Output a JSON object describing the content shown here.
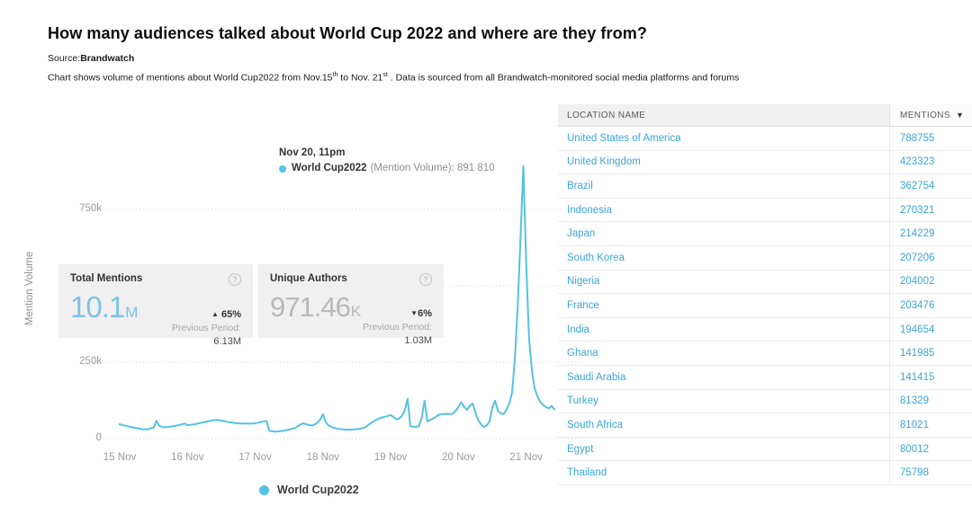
{
  "icons": {
    "help": "?",
    "sort_desc": "▼",
    "up_triangle": "▲",
    "down_triangle": "▼"
  },
  "header": {
    "title": "How many audiences talked about World Cup 2022 and where are they from?",
    "source_prefix": "Source:",
    "source_name": "Brandwatch",
    "subtitle_part1": "Chart shows volume of mentions about World Cup2022 from Nov.15",
    "subtitle_sup1": "th",
    "subtitle_part2": " to Nov. 21",
    "subtitle_sup2": "st",
    "subtitle_part3": " . Data is sourced from all Brandwatch-monitored social media platforms and forums"
  },
  "tooltip": {
    "date": "Nov 20, 11pm",
    "series": "World Cup2022",
    "metric": "(Mention Volume): 891 810"
  },
  "kpis": [
    {
      "title": "Total Mentions",
      "value": "10.1",
      "unit": "M",
      "change": "65%",
      "direction": "up",
      "prev_label": "Previous Period:",
      "prev_value": "6.13M"
    },
    {
      "title": "Unique Authors",
      "value": "971.46",
      "unit": "K",
      "change": "6%",
      "direction": "down",
      "prev_label": "Previous Period:",
      "prev_value": "1.03M"
    }
  ],
  "legend": {
    "label": "World Cup2022"
  },
  "chart_data": {
    "type": "line",
    "series_name": "World Cup2022",
    "ylabel": "Mention Volume",
    "line_color": "#55c1e2",
    "x_start": "Nov 15, 12am",
    "x_interval_hours": 1,
    "x_ticks": [
      "15 Nov",
      "16 Nov",
      "17 Nov",
      "18 Nov",
      "19 Nov",
      "20 Nov",
      "21 Nov"
    ],
    "y_ticks": [
      {
        "value": 750000,
        "label": "750k"
      },
      {
        "value": 500000,
        "label": ""
      },
      {
        "value": 250000,
        "label": "250k"
      },
      {
        "value": 0,
        "label": "0"
      }
    ],
    "ylim": [
      0,
      910000
    ],
    "grid": "dotted",
    "legend_position": "bottom",
    "peak": {
      "time": "Nov 20, 11pm",
      "value": 891810
    },
    "values": [
      47000,
      44500,
      42000,
      40000,
      38000,
      36000,
      34000,
      32500,
      31000,
      30000,
      31000,
      33500,
      36000,
      58000,
      42000,
      38000,
      37000,
      38000,
      39500,
      41000,
      42500,
      44000,
      46500,
      49000,
      44000,
      45000,
      46500,
      48000,
      50000,
      52000,
      54000,
      56000,
      58000,
      60000,
      61500,
      60500,
      59000,
      57000,
      55000,
      53500,
      52000,
      51000,
      50000,
      49500,
      49000,
      49500,
      49000,
      49500,
      50000,
      52000,
      54500,
      56500,
      58000,
      26000,
      24000,
      23000,
      23500,
      24500,
      26000,
      27500,
      29500,
      32000,
      34500,
      40000,
      46000,
      50000,
      47000,
      44000,
      43000,
      46000,
      52000,
      62000,
      80000,
      54000,
      43000,
      38500,
      35000,
      33000,
      31500,
      30000,
      29500,
      29000,
      29500,
      30000,
      31000,
      32000,
      34000,
      37500,
      44000,
      51000,
      57000,
      62000,
      66500,
      69500,
      71500,
      74000,
      77000,
      71000,
      63000,
      66000,
      74000,
      93000,
      130000,
      41000,
      39000,
      38500,
      41000,
      68000,
      124000,
      56000,
      61000,
      66000,
      71000,
      77500,
      80000,
      80500,
      81000,
      80000,
      82000,
      91000,
      103000,
      119000,
      104000,
      94000,
      107000,
      115000,
      86000,
      61000,
      46000,
      38000,
      43000,
      56000,
      101000,
      124000,
      91000,
      83000,
      80000,
      94000,
      114000,
      150000,
      260000,
      430000,
      660000,
      891810,
      580000,
      330000,
      225000,
      165000,
      138000,
      120000,
      110000,
      103000,
      99000,
      107000,
      96000
    ]
  },
  "table": {
    "headers": {
      "location": "LOCATION NAME",
      "mentions": "MENTIONS"
    },
    "rows": [
      {
        "location": "United States of America",
        "mentions": "788755"
      },
      {
        "location": "United Kingdom",
        "mentions": "423323"
      },
      {
        "location": "Brazil",
        "mentions": "362754"
      },
      {
        "location": "Indonesia",
        "mentions": "270321"
      },
      {
        "location": "Japan",
        "mentions": "214229"
      },
      {
        "location": "South Korea",
        "mentions": "207206"
      },
      {
        "location": "Nigeria",
        "mentions": "204002"
      },
      {
        "location": "France",
        "mentions": "203476"
      },
      {
        "location": "India",
        "mentions": "194654"
      },
      {
        "location": "Ghana",
        "mentions": "141985"
      },
      {
        "location": "Saudi Arabia",
        "mentions": "141415"
      },
      {
        "location": "Turkey",
        "mentions": "81329"
      },
      {
        "location": "South Africa",
        "mentions": "81021"
      },
      {
        "location": "Egypt",
        "mentions": "80012"
      },
      {
        "location": "Thailand",
        "mentions": "75798"
      }
    ]
  }
}
